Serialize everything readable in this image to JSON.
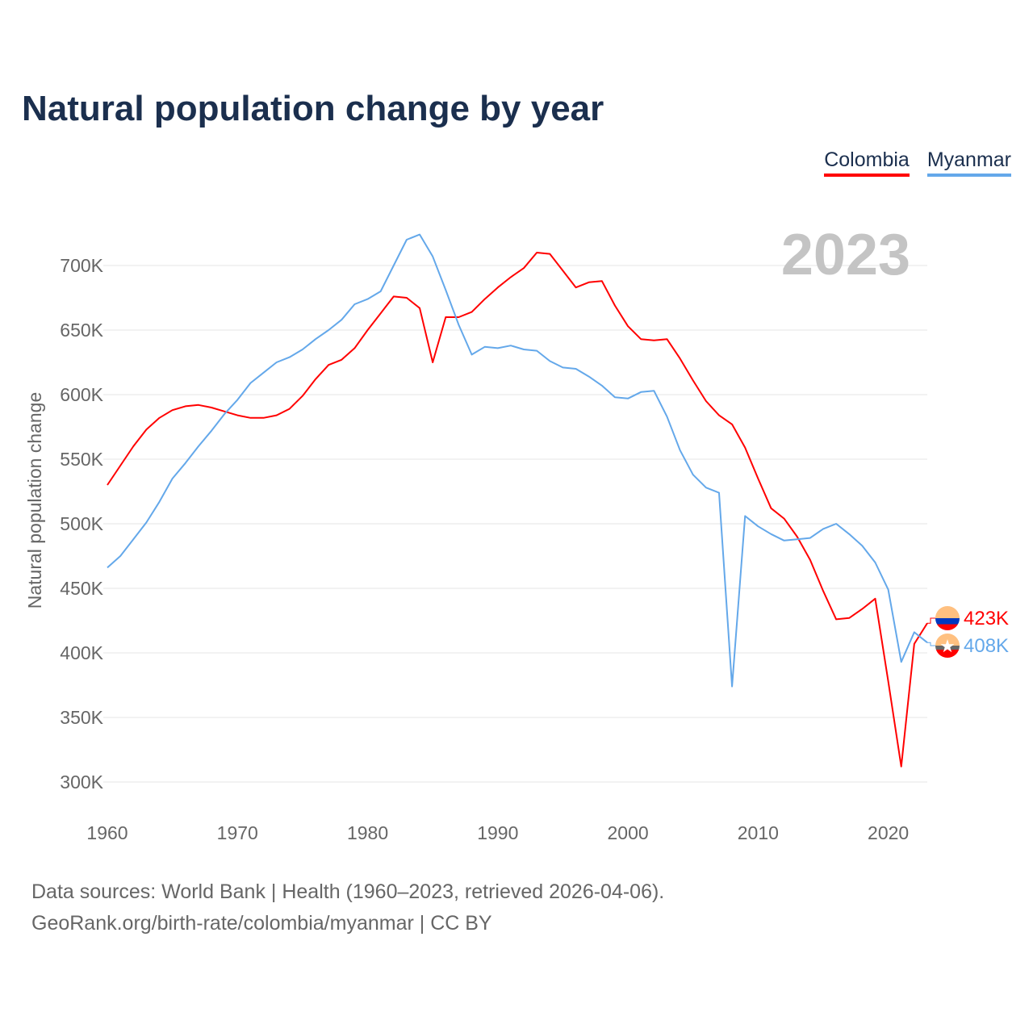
{
  "title": "Natural population change by year",
  "legend": [
    {
      "label": "Colombia",
      "color": "#ff0000"
    },
    {
      "label": "Myanmar",
      "color": "#64a8ea"
    }
  ],
  "footer": {
    "line1": "Data sources: World Bank | Health (1960–2023, retrieved 2026-04-06).",
    "line2": "GeoRank.org/birth-rate/colombia/myanmar | CC BY"
  },
  "chart_data": {
    "type": "line",
    "title": "Natural population change by year",
    "ylabel": "Natural population change",
    "xlabel": "",
    "year_watermark": "2023",
    "xlim": [
      1960,
      2023
    ],
    "ylim": [
      300000,
      700000
    ],
    "xticks": [
      1960,
      1970,
      1980,
      1990,
      2000,
      2010,
      2020
    ],
    "yticks": [
      {
        "value": 300000,
        "label": "300K"
      },
      {
        "value": 350000,
        "label": "350K"
      },
      {
        "value": 400000,
        "label": "400K"
      },
      {
        "value": 450000,
        "label": "450K"
      },
      {
        "value": 500000,
        "label": "500K"
      },
      {
        "value": 550000,
        "label": "550K"
      },
      {
        "value": 600000,
        "label": "600K"
      },
      {
        "value": 650000,
        "label": "650K"
      },
      {
        "value": 700000,
        "label": "700K"
      }
    ],
    "grid": true,
    "legend_position": "top-right",
    "x_start": 1960,
    "series": [
      {
        "name": "Colombia",
        "color": "#ff0000",
        "end_label": "423K",
        "flag": [
          "#ffc080",
          "#0038c0",
          "#ff0000"
        ],
        "values": [
          530,
          545,
          560,
          573,
          582,
          588,
          591,
          592,
          590,
          587,
          584,
          582,
          582,
          584,
          589,
          599,
          612,
          623,
          627,
          636,
          650,
          663,
          676,
          675,
          667,
          625,
          660,
          660,
          664,
          674,
          683,
          691,
          698,
          710,
          709,
          696,
          683,
          687,
          688,
          669,
          653,
          643,
          642,
          643,
          628,
          611,
          595,
          584,
          577,
          559,
          535,
          512,
          504,
          490,
          472,
          448,
          426,
          427,
          434,
          442,
          378,
          312,
          407,
          423
        ]
      },
      {
        "name": "Myanmar",
        "color": "#64a8ea",
        "end_label": "408K",
        "flag": [
          "#ffc080",
          "#666666",
          "#ff0000"
        ],
        "values": [
          466,
          475,
          488,
          501,
          517,
          535,
          547,
          560,
          572,
          585,
          596,
          609,
          617,
          625,
          629,
          635,
          643,
          650,
          658,
          670,
          674,
          680,
          700,
          720,
          724,
          707,
          681,
          654,
          631,
          637,
          636,
          638,
          635,
          634,
          626,
          621,
          620,
          614,
          607,
          598,
          597,
          602,
          603,
          583,
          557,
          538,
          528,
          524,
          374,
          506,
          498,
          492,
          487,
          488,
          489,
          496,
          500,
          492,
          483,
          470,
          449,
          393,
          416,
          408
        ]
      }
    ]
  }
}
